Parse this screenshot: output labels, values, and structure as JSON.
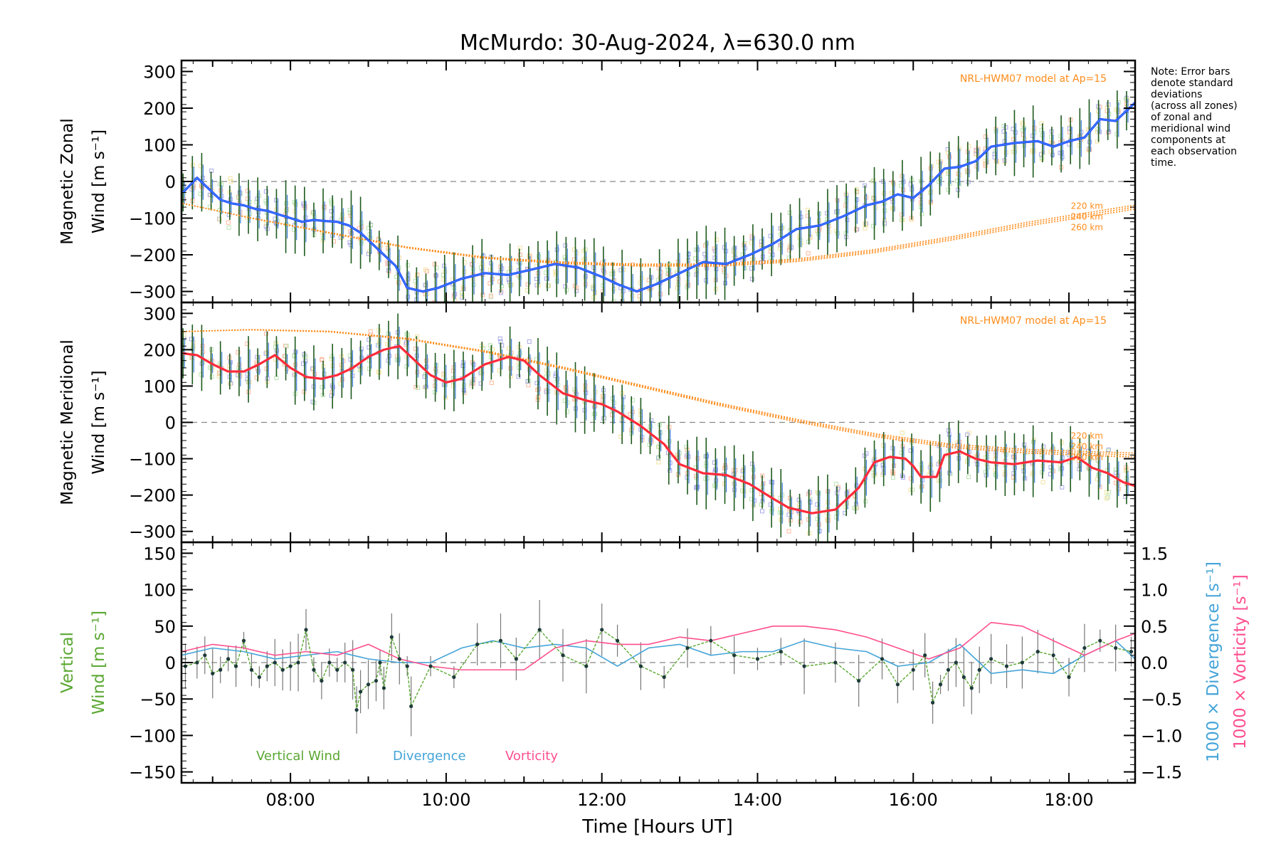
{
  "title": "McMurdo: 30-Aug-2024, λ=630.0 nm",
  "note": "Note: Error bars denote standard deviations (across all zones) of zonal and meridional wind components at each observation time.",
  "note_lines": [
    "Note: Error bars",
    "denote standard",
    "deviations",
    "(across all zones)",
    "of zonal and",
    "meridional wind",
    "components at",
    "each observation",
    "time."
  ],
  "colors": {
    "zonal_line": "#1f3cff",
    "zonal_line_light": "#3d8fff",
    "meridional_line": "#ff2a3a",
    "model": "#ff8c1a",
    "vertical": "#5aa832",
    "divergence": "#44a4d8",
    "vorticity": "#ff4f8e",
    "errbar": "#1e5a1e",
    "zero_line": "#888888",
    "scatter_blue": "#a9a9e8",
    "scatter_orange": "#ffb79c",
    "scatter_yellow": "#f2e3a0",
    "scatter_green": "#b9e3b0"
  },
  "chart_data": [
    {
      "type": "line",
      "id": "zonal",
      "ylabel_line1": "Magnetic Zonal",
      "ylabel_line2": "Wind [m s⁻¹]",
      "xlim": [
        6.6,
        18.85
      ],
      "ylim": [
        -330,
        330
      ],
      "yticks": [
        -300,
        -200,
        -100,
        0,
        100,
        200,
        300
      ],
      "ytick_labels": [
        "−300",
        "−200",
        "−100",
        "0",
        "100",
        "200",
        "300"
      ],
      "model_label": "NRL-HWM07 model at Ap=15",
      "model_alt_labels": [
        "220 km",
        "240 km",
        "260 km"
      ],
      "series": [
        {
          "name": "",
          "x": [
            6.62,
            6.8,
            6.95,
            7.1,
            7.25,
            7.4,
            7.55,
            7.7,
            7.85,
            8.0,
            8.15,
            8.3,
            8.45,
            8.6,
            8.75,
            8.9,
            9.05,
            9.2,
            9.35,
            9.5,
            9.7,
            9.9,
            10.2,
            10.5,
            10.8,
            11.1,
            11.4,
            11.7,
            12.0,
            12.2,
            12.45,
            12.7,
            13.0,
            13.3,
            13.6,
            13.9,
            14.2,
            14.5,
            14.8,
            15.1,
            15.4,
            15.6,
            15.8,
            16.0,
            16.2,
            16.4,
            16.6,
            16.8,
            17.0,
            17.3,
            17.6,
            17.8,
            18.0,
            18.2,
            18.4,
            18.6,
            18.85
          ],
          "y": [
            -30,
            10,
            -20,
            -50,
            -60,
            -65,
            -75,
            -80,
            -90,
            -100,
            -110,
            -105,
            -108,
            -110,
            -120,
            -140,
            -170,
            -200,
            -230,
            -290,
            -300,
            -290,
            -265,
            -250,
            -255,
            -240,
            -225,
            -235,
            -260,
            -280,
            -300,
            -280,
            -250,
            -220,
            -225,
            -200,
            -170,
            -130,
            -120,
            -95,
            -65,
            -55,
            -35,
            -45,
            -10,
            35,
            40,
            55,
            95,
            105,
            110,
            95,
            110,
            120,
            170,
            165,
            215
          ]
        }
      ],
      "model": {
        "x": [
          6.62,
          7.5,
          8.5,
          9.5,
          10.5,
          11.5,
          12.5,
          13.5,
          14.5,
          15.5,
          16.5,
          17.5,
          18.85
        ],
        "y": [
          -60,
          -100,
          -140,
          -180,
          -208,
          -222,
          -228,
          -228,
          -215,
          -190,
          -155,
          -115,
          -70
        ]
      }
    },
    {
      "type": "line",
      "id": "meridional",
      "ylabel_line1": "Magnetic Meridional",
      "ylabel_line2": "Wind [m s⁻¹]",
      "xlim": [
        6.6,
        18.85
      ],
      "ylim": [
        -330,
        330
      ],
      "yticks": [
        -300,
        -200,
        -100,
        0,
        100,
        200,
        300
      ],
      "ytick_labels": [
        "−300",
        "−200",
        "−100",
        "0",
        "100",
        "200",
        "300"
      ],
      "model_label": "NRL-HWM07 model at Ap=15",
      "model_alt_labels": [
        "220 km",
        "240 km",
        "260 km"
      ],
      "series": [
        {
          "name": "",
          "x": [
            6.62,
            6.8,
            7.0,
            7.2,
            7.4,
            7.6,
            7.8,
            8.0,
            8.2,
            8.4,
            8.6,
            8.8,
            9.0,
            9.2,
            9.4,
            9.6,
            9.8,
            10.0,
            10.2,
            10.5,
            10.8,
            11.0,
            11.2,
            11.5,
            11.8,
            12.0,
            12.2,
            12.5,
            12.8,
            13.0,
            13.3,
            13.6,
            13.9,
            14.2,
            14.4,
            14.7,
            15.0,
            15.3,
            15.5,
            15.7,
            15.9,
            16.0,
            16.1,
            16.3,
            16.4,
            16.6,
            16.8,
            17.0,
            17.3,
            17.6,
            17.9,
            18.1,
            18.3,
            18.5,
            18.7,
            18.85
          ],
          "y": [
            190,
            185,
            160,
            140,
            140,
            160,
            185,
            150,
            125,
            120,
            130,
            150,
            180,
            200,
            210,
            170,
            130,
            110,
            120,
            160,
            180,
            170,
            130,
            80,
            60,
            50,
            30,
            -10,
            -60,
            -115,
            -140,
            -145,
            -170,
            -210,
            -235,
            -250,
            -240,
            -180,
            -110,
            -95,
            -100,
            -120,
            -150,
            -150,
            -90,
            -80,
            -100,
            -110,
            -115,
            -105,
            -110,
            -95,
            -125,
            -140,
            -165,
            -175
          ]
        }
      ],
      "model": {
        "x": [
          6.62,
          7.5,
          8.5,
          9.5,
          10.5,
          11.5,
          12.5,
          13.5,
          14.5,
          15.5,
          16.5,
          17.5,
          18.85
        ],
        "y": [
          250,
          255,
          250,
          230,
          195,
          150,
          100,
          50,
          5,
          -35,
          -65,
          -80,
          -90
        ]
      }
    },
    {
      "type": "line",
      "id": "vertical",
      "ylabel_line1": "Vertical",
      "ylabel_line2": "Wind [m s⁻¹]",
      "y2label_divergence": "1000 × Divergence [s⁻¹]",
      "y2label_vorticity": "1000 × Vorticity [s⁻¹]",
      "xlabel": "Time [Hours UT]",
      "xlim": [
        6.6,
        18.85
      ],
      "ylim": [
        -165,
        165
      ],
      "yticks": [
        -150,
        -100,
        -50,
        0,
        50,
        100,
        150
      ],
      "ytick_labels": [
        "−150",
        "−100",
        "−50",
        "0",
        "50",
        "100",
        "150"
      ],
      "y2lim": [
        -1.65,
        1.65
      ],
      "y2ticks": [
        -1.5,
        -1.0,
        -0.5,
        0.0,
        0.5,
        1.0,
        1.5
      ],
      "y2tick_labels": [
        "−1.5",
        "−1.0",
        "−0.5",
        "0.0",
        "0.5",
        "1.0",
        "1.5"
      ],
      "xticks": [
        8,
        10,
        12,
        14,
        16,
        18
      ],
      "xtick_labels": [
        "08:00",
        "10:00",
        "12:00",
        "14:00",
        "16:00",
        "18:00"
      ],
      "legend": [
        "Vertical Wind",
        "Divergence",
        "Vorticity"
      ],
      "series": [
        {
          "name": "Vertical Wind",
          "axis": "left",
          "x": [
            6.65,
            6.8,
            6.9,
            7.0,
            7.1,
            7.2,
            7.3,
            7.4,
            7.5,
            7.6,
            7.7,
            7.8,
            7.9,
            8.0,
            8.1,
            8.2,
            8.3,
            8.4,
            8.5,
            8.6,
            8.7,
            8.8,
            8.85,
            8.9,
            9.0,
            9.1,
            9.15,
            9.2,
            9.3,
            9.4,
            9.5,
            9.55,
            9.8,
            10.1,
            10.4,
            10.7,
            10.9,
            11.2,
            11.5,
            11.8,
            12.0,
            12.2,
            12.5,
            12.8,
            13.1,
            13.4,
            13.7,
            14.0,
            14.3,
            14.6,
            15.0,
            15.3,
            15.6,
            15.8,
            16.0,
            16.15,
            16.25,
            16.35,
            16.45,
            16.55,
            16.65,
            16.75,
            16.85,
            17.0,
            17.2,
            17.4,
            17.6,
            17.8,
            18.0,
            18.2,
            18.4,
            18.6,
            18.8
          ],
          "y": [
            -5,
            0,
            10,
            -15,
            -10,
            5,
            -5,
            30,
            -10,
            -20,
            -5,
            0,
            -10,
            -5,
            0,
            45,
            -10,
            -25,
            0,
            -10,
            0,
            -10,
            -65,
            -40,
            -30,
            -25,
            0,
            -35,
            35,
            5,
            -5,
            -60,
            -5,
            -20,
            25,
            30,
            5,
            45,
            10,
            -5,
            45,
            30,
            -5,
            -20,
            20,
            30,
            10,
            5,
            15,
            -5,
            0,
            -25,
            5,
            -30,
            -10,
            10,
            -55,
            -30,
            -10,
            0,
            -20,
            -35,
            -10,
            5,
            -5,
            0,
            15,
            10,
            -20,
            20,
            30,
            20,
            15
          ]
        },
        {
          "name": "Divergence",
          "axis": "right",
          "x": [
            6.6,
            7.0,
            7.4,
            7.8,
            8.2,
            8.6,
            9.0,
            9.4,
            9.8,
            10.2,
            10.6,
            11.0,
            11.4,
            11.8,
            12.2,
            12.6,
            13.0,
            13.4,
            13.8,
            14.2,
            14.6,
            15.0,
            15.4,
            15.8,
            16.2,
            16.6,
            17.0,
            17.4,
            17.8,
            18.2,
            18.6,
            18.85
          ],
          "y": [
            0.1,
            0.2,
            0.15,
            0.05,
            0.1,
            0.15,
            0.05,
            0.0,
            0.0,
            0.2,
            0.3,
            0.2,
            0.25,
            0.2,
            -0.05,
            0.2,
            0.25,
            0.1,
            0.15,
            0.15,
            0.3,
            0.2,
            0.15,
            -0.05,
            0.0,
            0.25,
            -0.15,
            -0.1,
            -0.15,
            0.1,
            0.3,
            0.05
          ]
        },
        {
          "name": "Vorticity",
          "axis": "right",
          "x": [
            6.6,
            7.0,
            7.4,
            7.8,
            8.2,
            8.6,
            9.0,
            9.4,
            9.8,
            10.2,
            10.6,
            11.0,
            11.4,
            11.8,
            12.2,
            12.6,
            13.0,
            13.4,
            13.8,
            14.2,
            14.6,
            15.0,
            15.4,
            15.8,
            16.2,
            16.6,
            17.0,
            17.4,
            17.8,
            18.2,
            18.6,
            18.85
          ],
          "y": [
            0.15,
            0.25,
            0.2,
            0.1,
            0.15,
            0.1,
            0.25,
            0.05,
            -0.05,
            -0.1,
            -0.1,
            -0.1,
            0.2,
            0.3,
            0.25,
            0.25,
            0.35,
            0.3,
            0.4,
            0.5,
            0.5,
            0.45,
            0.35,
            0.2,
            0.05,
            0.2,
            0.55,
            0.5,
            0.3,
            0.1,
            0.3,
            0.4
          ]
        }
      ]
    }
  ]
}
